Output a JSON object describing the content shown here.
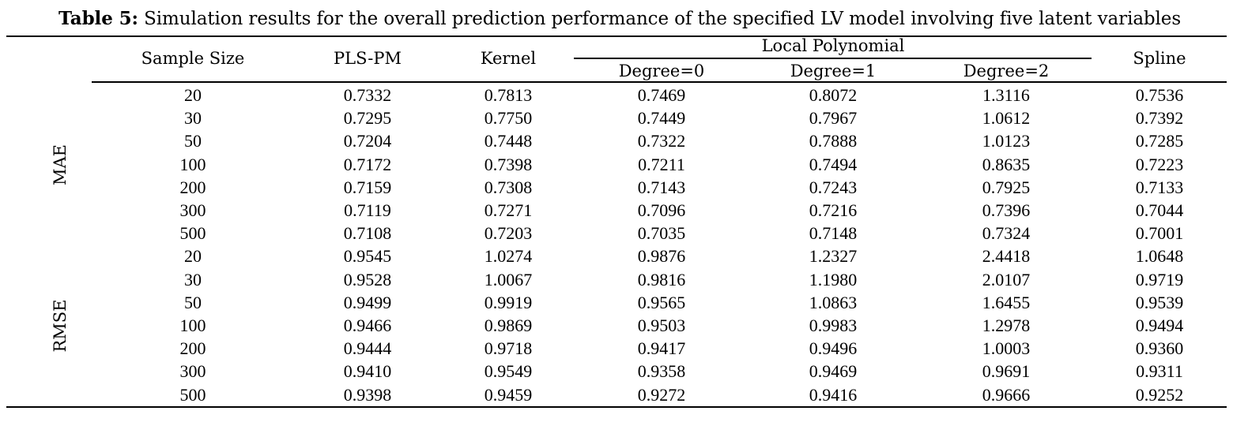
{
  "title": {
    "label": "Table 5:",
    "text": " Simulation results for the overall prediction performance of the specified LV model involving five latent variables"
  },
  "headers": {
    "sample_size": "Sample Size",
    "plspm": "PLS-PM",
    "kernel": "Kernel",
    "local_poly": "Local Polynomial",
    "deg0": "Degree=0",
    "deg1": "Degree=1",
    "deg2": "Degree=2",
    "spline": "Spline"
  },
  "groups": [
    {
      "label": "MAE",
      "rows": [
        [
          "20",
          "0.7332",
          "0.7813",
          "0.7469",
          "0.8072",
          "1.3116",
          "0.7536"
        ],
        [
          "30",
          "0.7295",
          "0.7750",
          "0.7449",
          "0.7967",
          "1.0612",
          "0.7392"
        ],
        [
          "50",
          "0.7204",
          "0.7448",
          "0.7322",
          "0.7888",
          "1.0123",
          "0.7285"
        ],
        [
          "100",
          "0.7172",
          "0.7398",
          "0.7211",
          "0.7494",
          "0.8635",
          "0.7223"
        ],
        [
          "200",
          "0.7159",
          "0.7308",
          "0.7143",
          "0.7243",
          "0.7925",
          "0.7133"
        ],
        [
          "300",
          "0.7119",
          "0.7271",
          "0.7096",
          "0.7216",
          "0.7396",
          "0.7044"
        ],
        [
          "500",
          "0.7108",
          "0.7203",
          "0.7035",
          "0.7148",
          "0.7324",
          "0.7001"
        ]
      ]
    },
    {
      "label": "RMSE",
      "rows": [
        [
          "20",
          "0.9545",
          "1.0274",
          "0.9876",
          "1.2327",
          "2.4418",
          "1.0648"
        ],
        [
          "30",
          "0.9528",
          "1.0067",
          "0.9816",
          "1.1980",
          "2.0107",
          "0.9719"
        ],
        [
          "50",
          "0.9499",
          "0.9919",
          "0.9565",
          "1.0863",
          "1.6455",
          "0.9539"
        ],
        [
          "100",
          "0.9466",
          "0.9869",
          "0.9503",
          "0.9983",
          "1.2978",
          "0.9494"
        ],
        [
          "200",
          "0.9444",
          "0.9718",
          "0.9417",
          "0.9496",
          "1.0003",
          "0.9360"
        ],
        [
          "300",
          "0.9410",
          "0.9549",
          "0.9358",
          "0.9469",
          "0.9691",
          "0.9311"
        ],
        [
          "500",
          "0.9398",
          "0.9459",
          "0.9272",
          "0.9416",
          "0.9666",
          "0.9252"
        ]
      ]
    }
  ]
}
